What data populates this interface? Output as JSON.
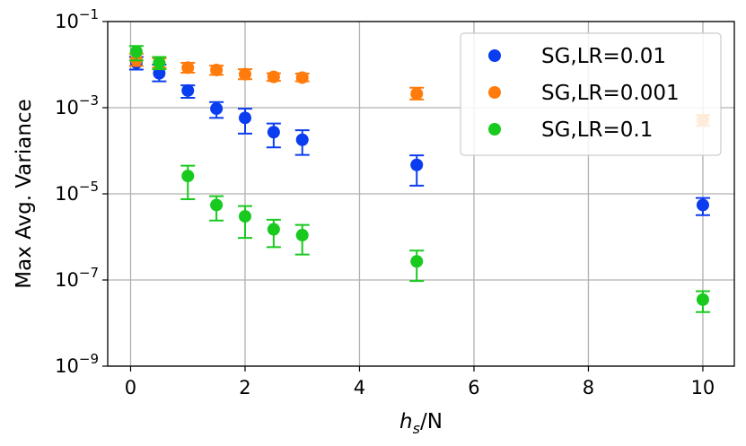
{
  "chart_data": {
    "type": "scatter",
    "title": "",
    "xlabel_main": "h",
    "xlabel_sub": "s",
    "xlabel_suffix": "/N",
    "ylabel": "Max Avg. Variance",
    "xlim": [
      -0.4,
      10.55
    ],
    "ylim_log10": [
      -9,
      -1
    ],
    "yscale": "log",
    "grid": true,
    "legend_position": "top-right",
    "x_ticks": [
      0,
      2,
      4,
      6,
      8,
      10
    ],
    "x_tick_labels": [
      "0",
      "2",
      "4",
      "6",
      "8",
      "10"
    ],
    "y_ticks_exp": [
      -9,
      -7,
      -5,
      -3,
      -1
    ],
    "y_tick_base": "10",
    "y_tick_exponents": [
      "−9",
      "−7",
      "−5",
      "−3",
      "−1"
    ],
    "series": [
      {
        "name": "SG,LR=0.01",
        "color": "#0b3df0",
        "x": [
          0.1,
          0.5,
          1.0,
          1.5,
          2.0,
          2.5,
          3.0,
          5.0,
          10.0
        ],
        "y": [
          0.011,
          0.0063,
          0.0025,
          0.00095,
          0.00058,
          0.00027,
          0.00018,
          4.7e-05,
          5.5e-06
        ],
        "y_low": [
          0.0077,
          0.0041,
          0.0017,
          0.00058,
          0.00025,
          0.00012,
          8e-05,
          1.55e-05,
          3.2e-06
        ],
        "y_high": [
          0.015,
          0.01,
          0.0033,
          0.00135,
          0.00095,
          0.00043,
          0.0003,
          7.8e-05,
          8e-06
        ]
      },
      {
        "name": "SG,LR=0.001",
        "color": "#ff7c0c",
        "x": [
          0.1,
          0.5,
          1.0,
          1.5,
          2.0,
          2.5,
          3.0,
          5.0,
          10.0
        ],
        "y": [
          0.013,
          0.011,
          0.0085,
          0.0075,
          0.006,
          0.0052,
          0.005,
          0.0021,
          0.00052
        ],
        "y_low": [
          0.0093,
          0.0085,
          0.0065,
          0.0058,
          0.0046,
          0.0042,
          0.0041,
          0.00155,
          0.00038
        ],
        "y_high": [
          0.018,
          0.014,
          0.011,
          0.0095,
          0.0078,
          0.0063,
          0.0062,
          0.0029,
          0.00068
        ]
      },
      {
        "name": "SG,LR=0.1",
        "color": "#18c91e",
        "x": [
          0.1,
          0.5,
          1.0,
          1.5,
          2.0,
          2.5,
          3.0,
          5.0,
          10.0
        ],
        "y": [
          0.02,
          0.011,
          2.6e-05,
          5.5e-06,
          3e-06,
          1.5e-06,
          1.1e-06,
          2.7e-07,
          3.5e-08
        ],
        "y_low": [
          0.0125,
          0.0078,
          7.5e-06,
          2.4e-06,
          9.5e-07,
          5.8e-07,
          3.9e-07,
          9.5e-08,
          1.8e-08
        ],
        "y_high": [
          0.027,
          0.015,
          4.5e-05,
          8.8e-06,
          5.2e-06,
          2.5e-06,
          1.9e-06,
          4.8e-07,
          5.5e-08
        ]
      }
    ]
  }
}
